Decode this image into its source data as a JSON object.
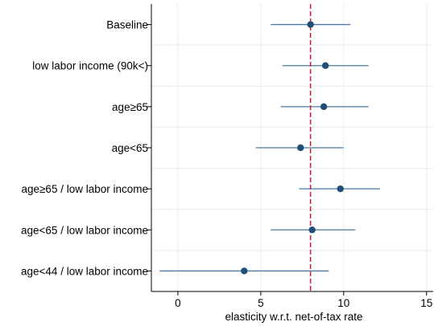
{
  "chart_data": {
    "type": "scatter",
    "categories": [
      "Baseline",
      "low labor income (90k<)",
      "age≥65",
      "age<65",
      "age≥65 / low labor income",
      "age<65 / low labor income",
      "age<44 / low labor income"
    ],
    "estimates": [
      8.0,
      8.9,
      8.8,
      7.4,
      9.8,
      8.1,
      4.0
    ],
    "ci_low": [
      5.6,
      6.3,
      6.2,
      4.7,
      7.3,
      5.6,
      -1.1
    ],
    "ci_high": [
      10.4,
      11.5,
      11.5,
      10.0,
      12.2,
      10.7,
      9.1
    ],
    "reference_line": 8.0,
    "xlim": [
      -1.6,
      15.4
    ],
    "xticks": [
      0,
      5,
      10,
      15
    ],
    "xtick_labels": [
      "0",
      "5",
      "10",
      "15"
    ],
    "xlabel": "elasticity w.r.t. net-of-tax rate",
    "ylabel": "",
    "title": "",
    "grid": true,
    "colors": {
      "point": "#1f4e79",
      "ci": "#4a7aa5",
      "reference": "#c0223b",
      "grid": "#e6ecf2",
      "axis": "#000000"
    }
  }
}
